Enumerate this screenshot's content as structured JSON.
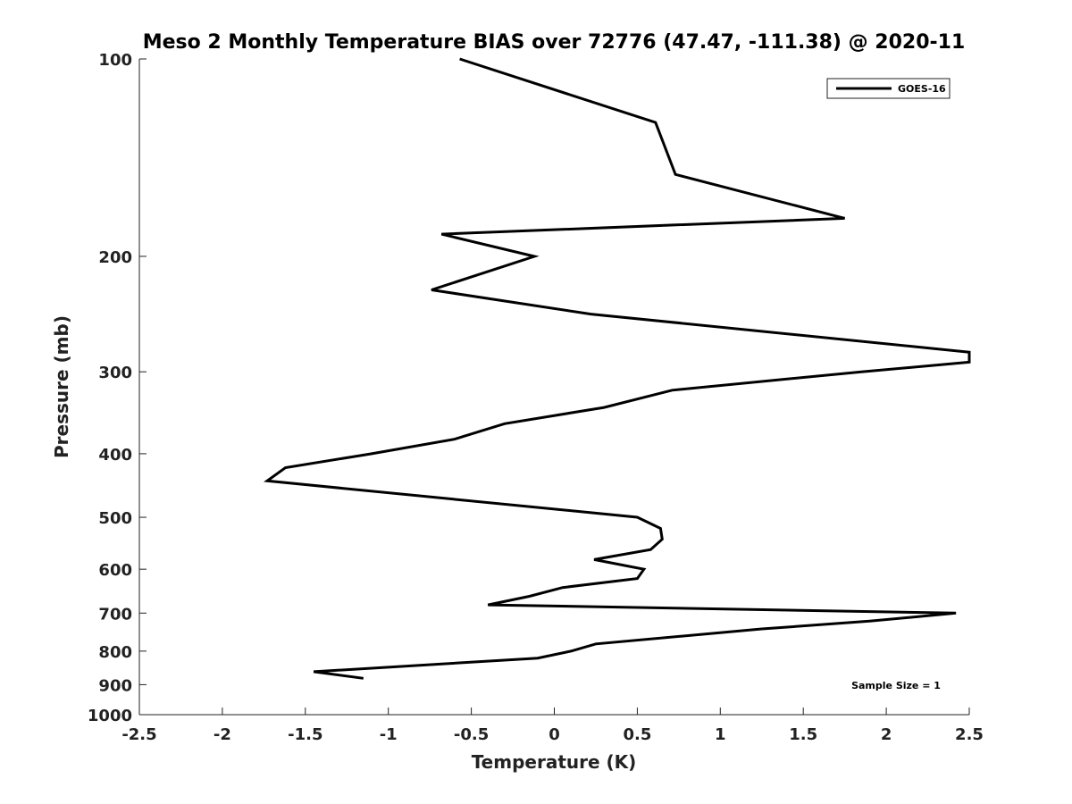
{
  "chart_data": {
    "type": "line",
    "title": "Meso 2 Monthly Temperature BIAS over 72776 (47.47, -111.38) @ 2020-11",
    "xlabel": "Temperature (K)",
    "ylabel": "Pressure (mb)",
    "xlim": [
      -2.5,
      2.5
    ],
    "ylim": [
      1000,
      100
    ],
    "y_scale": "log",
    "y_reversed": true,
    "grid": false,
    "legend_position": "top-right",
    "x_ticks": [
      "-2.5",
      "-2",
      "-1.5",
      "-1",
      "-0.5",
      "0",
      "0.5",
      "1",
      "1.5",
      "2",
      "2.5"
    ],
    "y_ticks": [
      "100",
      "200",
      "300",
      "400",
      "500",
      "600",
      "700",
      "800",
      "900",
      "1000"
    ],
    "series": [
      {
        "name": "GOES-16",
        "color": "#000000",
        "x": [
          -0.57,
          0.61,
          0.73,
          1.75,
          -0.68,
          -0.12,
          -0.74,
          0.22,
          2.5,
          2.5,
          1.85,
          0.71,
          0.3,
          -0.3,
          -0.6,
          -1.1,
          -1.62,
          -1.73,
          0.5,
          0.64,
          0.65,
          0.58,
          0.24,
          0.54,
          0.5,
          0.05,
          -0.15,
          -0.4,
          2.42,
          1.9,
          1.25,
          0.25,
          0.1,
          -0.1,
          -1.45,
          -1.15
        ],
        "y": [
          100,
          125,
          150,
          175,
          185,
          200,
          225,
          245,
          280,
          290,
          300,
          320,
          340,
          360,
          380,
          400,
          420,
          440,
          500,
          520,
          540,
          560,
          580,
          600,
          620,
          640,
          660,
          680,
          700,
          720,
          740,
          780,
          800,
          820,
          860,
          880
        ]
      }
    ],
    "annotation": "Sample Size = 1"
  }
}
